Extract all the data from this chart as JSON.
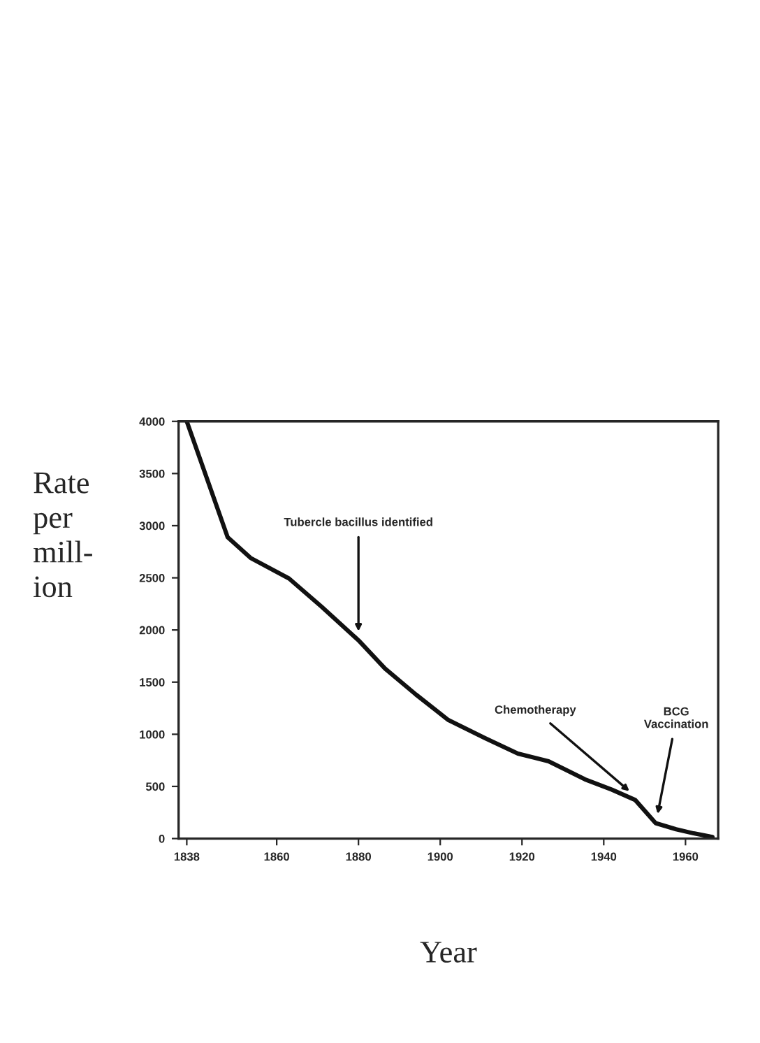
{
  "chart_data": {
    "type": "line",
    "xlabel": "Year",
    "ylabel": "Rate\nper\nmill-\nion",
    "x": [
      1838,
      1848,
      1853.6,
      1863,
      1871,
      1880,
      1886.5,
      1894,
      1902,
      1911,
      1919,
      1926.5,
      1935.4,
      1942,
      1947.7,
      1952.7,
      1957.7,
      1962,
      1966.6
    ],
    "series": [
      {
        "color": "#111111",
        "values": [
          4000,
          2889,
          2691,
          2494,
          2222,
          1901,
          1630,
          1383,
          1136,
          963,
          815,
          741,
          568,
          469,
          370,
          148,
          89,
          50,
          15
        ]
      }
    ],
    "xlim": [
      1836,
      1968
    ],
    "ylim": [
      0,
      4000
    ],
    "xticks": [
      1838,
      1860,
      1880,
      1900,
      1920,
      1940,
      1960
    ],
    "yticks": [
      0,
      500,
      1000,
      1500,
      2000,
      2500,
      3000,
      3500,
      4000
    ],
    "grid": false,
    "marker": "none",
    "line_style": "solid",
    "annotations": [
      {
        "text": "Tubercle bacillus identified",
        "x": 1880,
        "y": 1950
      },
      {
        "text": "Chemotherapy",
        "x": 1947,
        "y": 430
      },
      {
        "text": "BCG\nVaccination",
        "x": 1953,
        "y": 200
      }
    ]
  }
}
